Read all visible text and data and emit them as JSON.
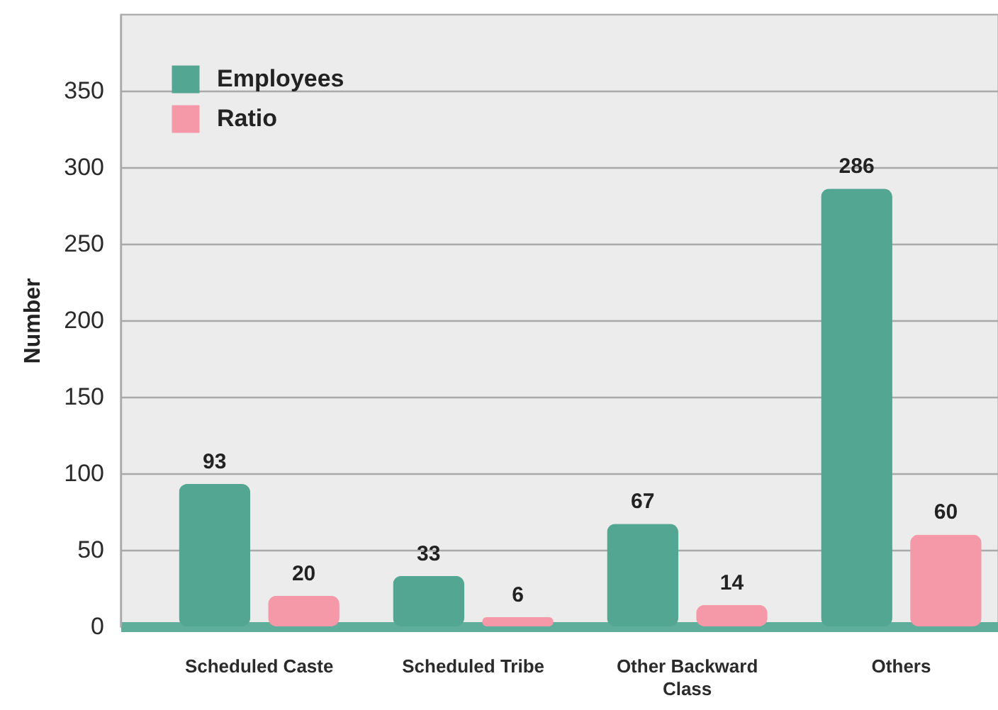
{
  "chart_data": {
    "type": "bar",
    "ylabel": "Number",
    "categories": [
      "Scheduled Caste",
      "Scheduled Tribe",
      "Other Backward Class",
      "Others"
    ],
    "series": [
      {
        "name": "Employees",
        "color": "#52a692",
        "values": [
          93,
          33,
          67,
          286
        ]
      },
      {
        "name": "Ratio",
        "color": "#f598a8",
        "values": [
          20,
          6,
          14,
          60
        ]
      }
    ],
    "ylim": [
      0,
      400
    ],
    "yticks": [
      0,
      50,
      100,
      150,
      200,
      250,
      300,
      350
    ],
    "grid": "y",
    "data_labels": true,
    "legend": "top left"
  }
}
